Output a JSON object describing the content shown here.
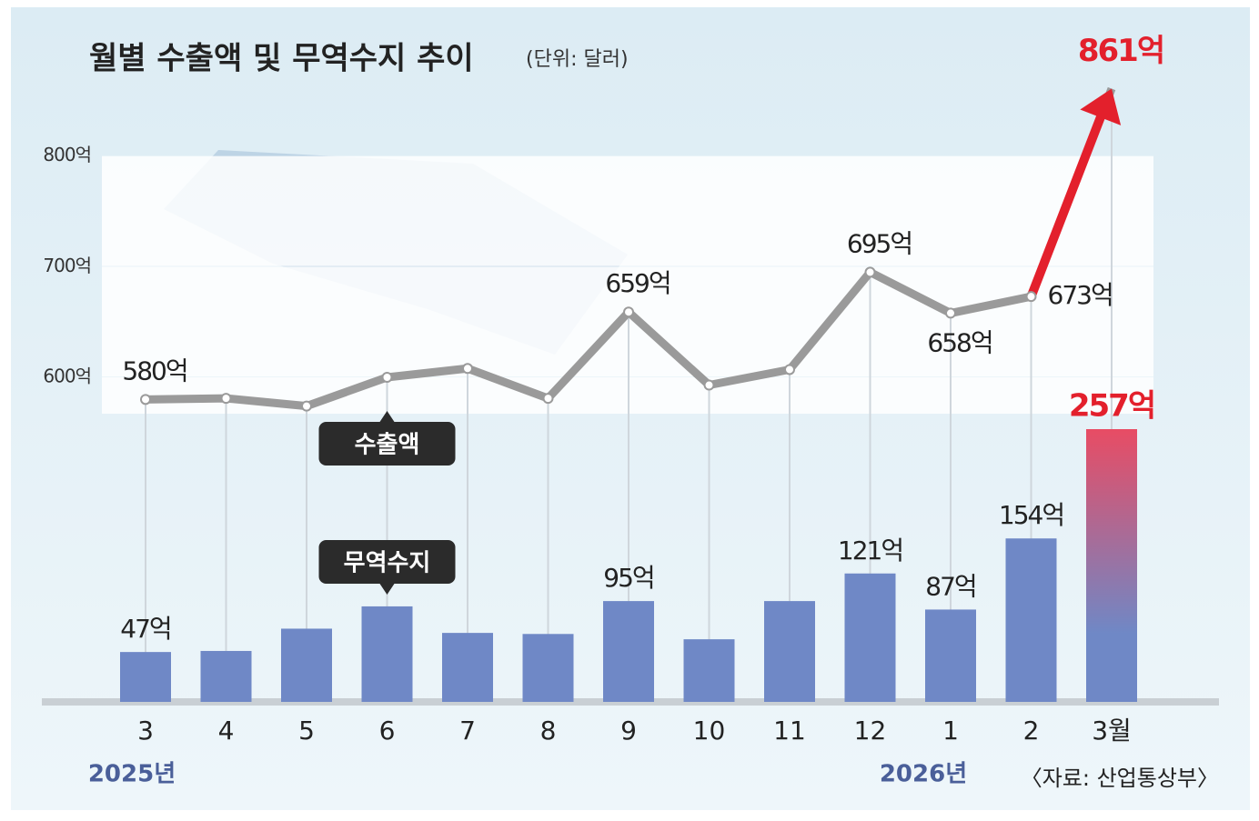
{
  "chart_data": {
    "type": "bar-line",
    "title": "월별 수출액 및 무역수지 추이",
    "subtitle": "(단위: 달러)",
    "source": "〈자료: 산업통상부〉",
    "categories": [
      "3",
      "4",
      "5",
      "6",
      "7",
      "8",
      "9",
      "10",
      "11",
      "12",
      "1",
      "2",
      "3월"
    ],
    "year_labels": [
      "2025년",
      "2026년"
    ],
    "ylim": [
      300,
      900
    ],
    "yticks": [
      {
        "value": 600,
        "label": "600억"
      },
      {
        "value": 700,
        "label": "700억"
      },
      {
        "value": 800,
        "label": "800억"
      }
    ],
    "grid": true,
    "highlight_color": "#e3202c",
    "series": [
      {
        "name": "수출액",
        "type": "line",
        "color": "#9a9a9a",
        "values": [
          580,
          581,
          574,
          600,
          608,
          581,
          659,
          593,
          607,
          695,
          658,
          673,
          861
        ],
        "value_labels": [
          "580억",
          null,
          null,
          null,
          null,
          null,
          "659억",
          null,
          null,
          "695억",
          "658억",
          "673억",
          "861억"
        ]
      },
      {
        "name": "무역수지",
        "type": "bar",
        "color": "#6f88c6",
        "values": [
          47,
          48,
          69,
          90,
          65,
          64,
          95,
          59,
          95,
          121,
          87,
          154,
          257
        ],
        "value_labels": [
          "47억",
          null,
          null,
          null,
          null,
          null,
          "95억",
          null,
          null,
          "121억",
          "87억",
          "154억",
          "257억"
        ]
      }
    ]
  }
}
